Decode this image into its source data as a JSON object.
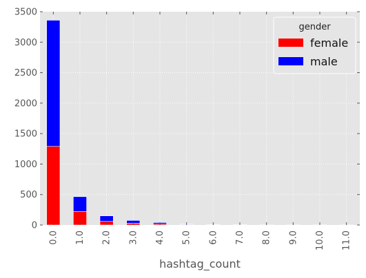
{
  "chart_data": {
    "type": "bar",
    "stacked": true,
    "title": "",
    "xlabel": "hashtag_count",
    "ylabel": "",
    "categories": [
      "0.0",
      "1.0",
      "2.0",
      "3.0",
      "4.0",
      "5.0",
      "6.0",
      "7.0",
      "8.0",
      "9.0",
      "10.0",
      "11.0"
    ],
    "series": [
      {
        "name": "female",
        "color": "#ff0000",
        "values": [
          1290,
          220,
          60,
          30,
          15,
          6,
          3,
          2,
          1,
          1,
          1,
          1
        ]
      },
      {
        "name": "male",
        "color": "#0000ff",
        "values": [
          2070,
          245,
          90,
          45,
          25,
          8,
          4,
          3,
          1,
          1,
          1,
          1
        ]
      }
    ],
    "ylim": [
      0,
      3500
    ],
    "yticks": [
      "0",
      "500",
      "1000",
      "1500",
      "2000",
      "2500",
      "3000",
      "3500"
    ],
    "grid": true,
    "background": "#e5e5e5",
    "grid_color": "#ffffff",
    "legend": {
      "title": "gender",
      "placement": "top-right"
    }
  }
}
